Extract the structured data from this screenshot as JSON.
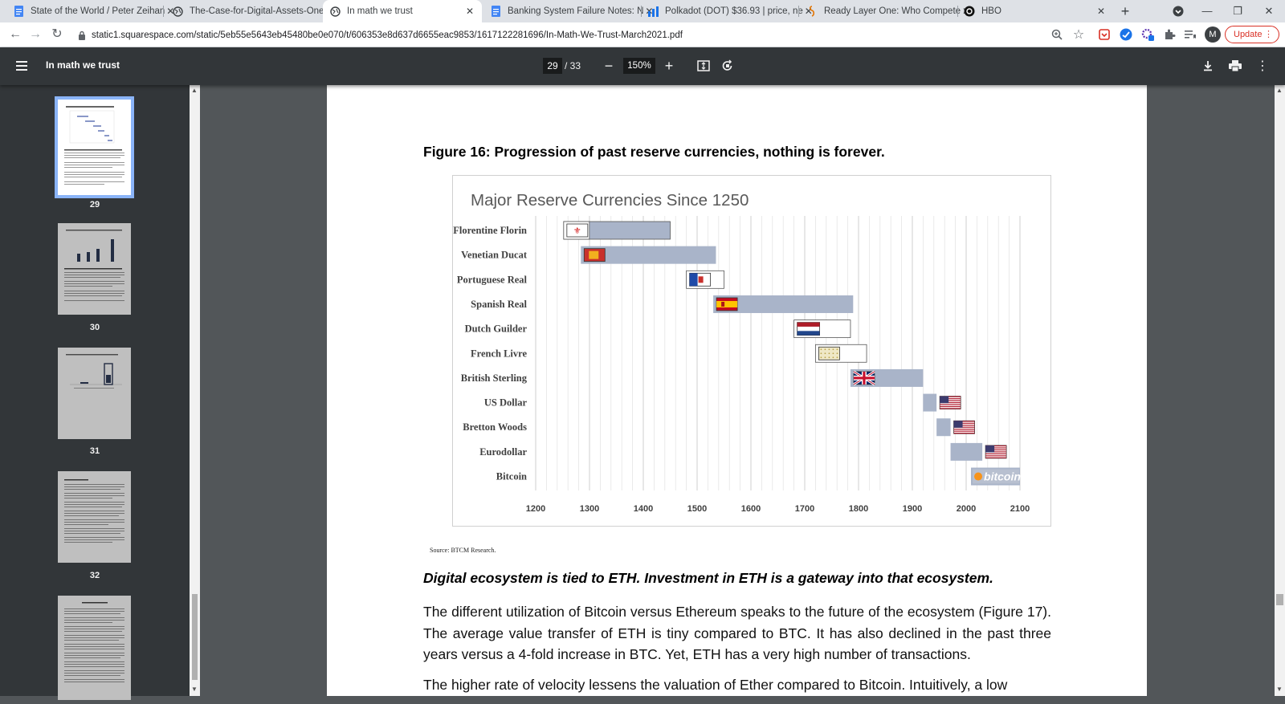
{
  "browser": {
    "tabs": [
      {
        "title": "State of the World / Peter Zeihan",
        "icon": "google-docs-icon"
      },
      {
        "title": "The-Case-for-Digital-Assets-One",
        "icon": "globe-icon"
      },
      {
        "title": "In math we trust",
        "icon": "globe-icon",
        "active": true
      },
      {
        "title": "Banking System Failure Notes: N",
        "icon": "google-docs-icon"
      },
      {
        "title": "Polkadot (DOT) $36.93 | price, ne",
        "icon": "chart-favicon-icon"
      },
      {
        "title": "Ready Layer One: Who Compete",
        "icon": "note-favicon-icon"
      },
      {
        "title": "HBO",
        "icon": "hbo-favicon-icon"
      }
    ],
    "url": "static1.squarespace.com/static/5eb55e5643eb45480be0e070/t/606353e8d637d6655eac9853/1617122281696/In-Math-We-Trust-March2021.pdf",
    "avatar_letter": "M",
    "update_label": "Update"
  },
  "viewer": {
    "title": "In math we trust",
    "page_current": "29",
    "page_total": "/ 33",
    "zoom": "150%"
  },
  "thumbnails": [
    {
      "label": "29",
      "selected": true
    },
    {
      "label": "30"
    },
    {
      "label": "31"
    },
    {
      "label": "32"
    },
    {
      "label": ""
    }
  ],
  "page": {
    "figure_title": "Figure 16: Progression of past reserve currencies, nothing is forever.",
    "source": "Source: BTCM Research.",
    "subheading": "Digital ecosystem is tied to ETH. Investment in ETH is a gateway into that ecosystem.",
    "para1": "The different utilization of Bitcoin versus Ethereum speaks to the future of the ecosystem (Figure 17). The average value transfer of ETH is tiny compared to BTC. It has also declined in the past three years versus a 4-fold increase in BTC. Yet, ETH has a very high number of transactions.",
    "para2": "The higher rate of velocity lessens the valuation of Ether compared to Bitcoin. Intuitively, a low"
  },
  "chart_data": {
    "type": "bar",
    "title": "Major Reserve Currencies Since 1250",
    "xlim": [
      1200,
      2100
    ],
    "xticks": [
      "1200",
      "1300",
      "1400",
      "1500",
      "1600",
      "1700",
      "1800",
      "1900",
      "2000",
      "2100"
    ],
    "grid": true,
    "series": [
      {
        "name": "Florentine Florin",
        "start": 1252,
        "end": 1450,
        "flag": "florence",
        "flag_at": "start"
      },
      {
        "name": "Venetian Ducat",
        "start": 1284,
        "end": 1535,
        "flag": "venice",
        "flag_at": "start"
      },
      {
        "name": "Portuguese Real",
        "start": 1480,
        "end": 1550,
        "flag": "portugal",
        "flag_at": "start"
      },
      {
        "name": "Spanish Real",
        "start": 1530,
        "end": 1790,
        "flag": "spain",
        "flag_at": "start"
      },
      {
        "name": "Dutch Guilder",
        "start": 1680,
        "end": 1785,
        "flag": "netherlands",
        "flag_at": "start"
      },
      {
        "name": "French Livre",
        "start": 1720,
        "end": 1815,
        "flag": "france",
        "flag_at": "start"
      },
      {
        "name": "British Sterling",
        "start": 1785,
        "end": 1920,
        "flag": "uk",
        "flag_at": "start"
      },
      {
        "name": "US Dollar",
        "start": 1920,
        "end": 1945,
        "flag": "us",
        "flag_at": "end"
      },
      {
        "name": "Bretton Woods",
        "start": 1945,
        "end": 1971,
        "flag": "us",
        "flag_at": "end"
      },
      {
        "name": "Eurodollar",
        "start": 1971,
        "end": 2030,
        "flag": "us",
        "flag_at": "end"
      },
      {
        "name": "Bitcoin",
        "start": 2009,
        "end": 2100,
        "flag": "bitcoin",
        "flag_at": "start",
        "flag_text": "bitcoin"
      }
    ],
    "colors": {
      "bar": "#a9b4c9",
      "outline_bar": "#ffffff",
      "grid": "#d9d9d9"
    }
  }
}
